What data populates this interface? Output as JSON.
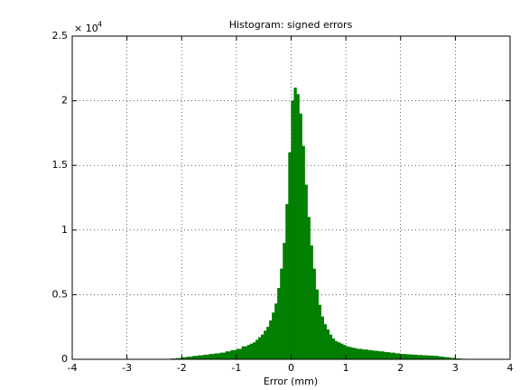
{
  "chart_data": {
    "type": "histogram",
    "title": "Histogram: signed errors",
    "x_label": "Error (mm)",
    "y_multiplier": {
      "base": "× 10",
      "exponent": "4"
    },
    "color": "#007f00",
    "grid": true,
    "xlim": [
      -4,
      4
    ],
    "xticks": [
      -4,
      -3,
      -2,
      -1,
      0,
      1,
      2,
      3,
      4
    ],
    "ylim": [
      0,
      25000
    ],
    "yticks": [
      0,
      {
        "value": 5000,
        "label": "0.5"
      },
      {
        "value": 10000,
        "label": "1"
      },
      {
        "value": 15000,
        "label": "1.5"
      },
      {
        "value": 20000,
        "label": "2"
      },
      {
        "value": 25000,
        "label": "2.5"
      }
    ],
    "bins": [
      -2.2,
      -2.1,
      -2.0,
      -1.9,
      -1.8,
      -1.7,
      -1.6,
      -1.5,
      -1.4,
      -1.3,
      -1.2,
      -1.1,
      -1.0,
      -0.9,
      -0.8,
      -0.75,
      -0.7,
      -0.65,
      -0.6,
      -0.55,
      -0.5,
      -0.45,
      -0.4,
      -0.35,
      -0.3,
      -0.25,
      -0.2,
      -0.15,
      -0.1,
      -0.05,
      0,
      0.05,
      0.1,
      0.15,
      0.2,
      0.25,
      0.3,
      0.35,
      0.4,
      0.45,
      0.5,
      0.55,
      0.6,
      0.65,
      0.7,
      0.75,
      0.8,
      0.85,
      0.9,
      0.95,
      1.0,
      1.05,
      1.1,
      1.15,
      1.2,
      1.3,
      1.4,
      1.5,
      1.6,
      1.7,
      1.8,
      1.9,
      2.0,
      2.1,
      2.2,
      2.3,
      2.4,
      2.5,
      2.6,
      2.7,
      2.8,
      2.9,
      3.0,
      3.1,
      3.2
    ],
    "values": [
      50,
      80,
      150,
      200,
      250,
      300,
      350,
      400,
      450,
      500,
      600,
      700,
      800,
      1000,
      1100,
      1200,
      1300,
      1500,
      1700,
      1900,
      2200,
      2500,
      3000,
      3600,
      4300,
      5500,
      7000,
      9000,
      12000,
      16000,
      20000,
      21000,
      20500,
      19000,
      16500,
      13500,
      11000,
      8800,
      7000,
      5400,
      4200,
      3300,
      2700,
      2300,
      1900,
      1600,
      1400,
      1300,
      1200,
      1100,
      1000,
      950,
      900,
      850,
      800,
      750,
      700,
      650,
      600,
      550,
      500,
      450,
      400,
      380,
      350,
      320,
      300,
      280,
      250,
      200,
      150,
      100,
      60,
      30
    ]
  }
}
